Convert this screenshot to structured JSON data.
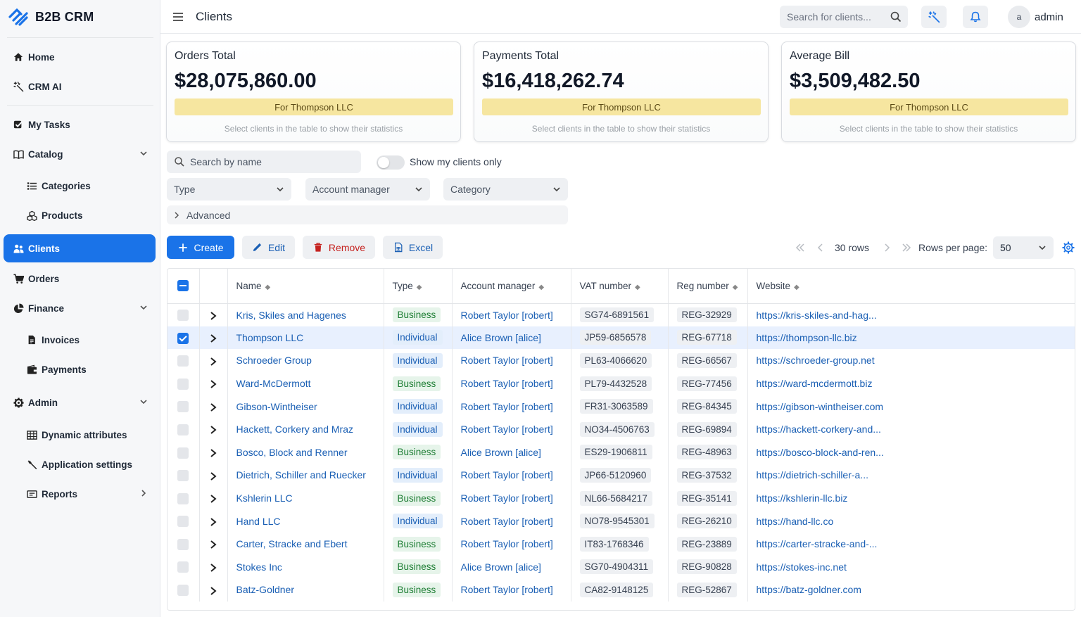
{
  "app": {
    "brand": "B2B CRM",
    "page_title": "Clients",
    "accent_color": "#1a73e8"
  },
  "sidebar": {
    "items": [
      {
        "name": "nav-home",
        "label": "Home",
        "icon": "home-icon"
      },
      {
        "name": "nav-crm-ai",
        "label": "CRM AI",
        "icon": "magic-wand-icon"
      },
      {
        "name": "nav-my-tasks",
        "label": "My Tasks",
        "icon": "checkbox-icon"
      },
      {
        "name": "nav-catalog",
        "label": "Catalog",
        "icon": "book-icon",
        "expandable": true
      },
      {
        "name": "nav-categories",
        "label": "Categories",
        "icon": "list-icon",
        "sub": true
      },
      {
        "name": "nav-products",
        "label": "Products",
        "icon": "cubes-icon",
        "sub": true
      },
      {
        "name": "nav-clients",
        "label": "Clients",
        "icon": "users-icon",
        "active": true
      },
      {
        "name": "nav-orders",
        "label": "Orders",
        "icon": "cart-icon"
      },
      {
        "name": "nav-finance",
        "label": "Finance",
        "icon": "pie-chart-icon",
        "expandable": true
      },
      {
        "name": "nav-invoices",
        "label": "Invoices",
        "icon": "document-icon",
        "sub": true
      },
      {
        "name": "nav-payments",
        "label": "Payments",
        "icon": "wallet-icon",
        "sub": true
      },
      {
        "name": "nav-admin",
        "label": "Admin",
        "icon": "gear-icon",
        "expandable": true
      },
      {
        "name": "nav-dynamic-attributes",
        "label": "Dynamic attributes",
        "icon": "table-icon",
        "sub": true
      },
      {
        "name": "nav-application-settings",
        "label": "Application settings",
        "icon": "wrench-icon",
        "sub": true
      },
      {
        "name": "nav-reports",
        "label": "Reports",
        "icon": "report-icon",
        "sub": true,
        "submenu": true
      }
    ]
  },
  "header": {
    "search_placeholder": "Search for clients...",
    "avatar_letter": "a",
    "username": "admin"
  },
  "stats": [
    {
      "title": "Orders Total",
      "value": "$28,075,860.00",
      "badge": "For Thompson LLC",
      "hint": "Select clients in the table to show their statistics"
    },
    {
      "title": "Payments Total",
      "value": "$16,418,262.74",
      "badge": "For Thompson LLC",
      "hint": "Select clients in the table to show their statistics"
    },
    {
      "title": "Average Bill",
      "value": "$3,509,482.50",
      "badge": "For Thompson LLC",
      "hint": "Select clients in the table to show their statistics"
    }
  ],
  "filters": {
    "name_placeholder": "Search by name",
    "my_clients_label": "Show my clients only",
    "my_clients_on": false,
    "type_label": "Type",
    "manager_label": "Account manager",
    "category_label": "Category",
    "advanced_label": "Advanced"
  },
  "toolbar": {
    "create": "Create",
    "edit": "Edit",
    "remove": "Remove",
    "excel": "Excel",
    "rows_count": "30 rows",
    "rows_per_page_label": "Rows per page:",
    "rows_per_page": "50"
  },
  "table": {
    "columns": [
      "Name",
      "Type",
      "Account manager",
      "VAT number",
      "Reg number",
      "Website"
    ],
    "rows": [
      {
        "name": "Kris, Skiles and Hagenes",
        "type": "Business",
        "manager": "Robert Taylor [robert]",
        "vat": "SG74-6891561",
        "reg": "REG-32929",
        "website": "https://kris-skiles-and-hag...",
        "selected": false
      },
      {
        "name": "Thompson LLC",
        "type": "Individual",
        "manager": "Alice Brown [alice]",
        "vat": "JP59-6856578",
        "reg": "REG-67718",
        "website": "https://thompson-llc.biz",
        "selected": true
      },
      {
        "name": "Schroeder Group",
        "type": "Individual",
        "manager": "Robert Taylor [robert]",
        "vat": "PL63-4066620",
        "reg": "REG-66567",
        "website": "https://schroeder-group.net",
        "selected": false
      },
      {
        "name": "Ward-McDermott",
        "type": "Business",
        "manager": "Robert Taylor [robert]",
        "vat": "PL79-4432528",
        "reg": "REG-77456",
        "website": "https://ward-mcdermott.biz",
        "selected": false
      },
      {
        "name": "Gibson-Wintheiser",
        "type": "Individual",
        "manager": "Robert Taylor [robert]",
        "vat": "FR31-3063589",
        "reg": "REG-84345",
        "website": "https://gibson-wintheiser.com",
        "selected": false
      },
      {
        "name": "Hackett, Corkery and Mraz",
        "type": "Individual",
        "manager": "Robert Taylor [robert]",
        "vat": "NO34-4506763",
        "reg": "REG-69894",
        "website": "https://hackett-corkery-and...",
        "selected": false
      },
      {
        "name": "Bosco, Block and Renner",
        "type": "Business",
        "manager": "Alice Brown [alice]",
        "vat": "ES29-1906811",
        "reg": "REG-48963",
        "website": "https://bosco-block-and-ren...",
        "selected": false
      },
      {
        "name": "Dietrich, Schiller and Ruecker",
        "type": "Individual",
        "manager": "Robert Taylor [robert]",
        "vat": "JP66-5120960",
        "reg": "REG-37532",
        "website": "https://dietrich-schiller-a...",
        "selected": false
      },
      {
        "name": "Kshlerin LLC",
        "type": "Business",
        "manager": "Robert Taylor [robert]",
        "vat": "NL66-5684217",
        "reg": "REG-35141",
        "website": "https://kshlerin-llc.biz",
        "selected": false
      },
      {
        "name": "Hand LLC",
        "type": "Individual",
        "manager": "Robert Taylor [robert]",
        "vat": "NO78-9545301",
        "reg": "REG-26210",
        "website": "https://hand-llc.co",
        "selected": false
      },
      {
        "name": "Carter, Stracke and Ebert",
        "type": "Business",
        "manager": "Robert Taylor [robert]",
        "vat": "IT83-1768346",
        "reg": "REG-23889",
        "website": "https://carter-stracke-and-...",
        "selected": false
      },
      {
        "name": "Stokes Inc",
        "type": "Business",
        "manager": "Alice Brown [alice]",
        "vat": "SG70-4904311",
        "reg": "REG-90828",
        "website": "https://stokes-inc.net",
        "selected": false
      },
      {
        "name": "Batz-Goldner",
        "type": "Business",
        "manager": "Robert Taylor [robert]",
        "vat": "CA82-9148125",
        "reg": "REG-52867",
        "website": "https://batz-goldner.com",
        "selected": false
      }
    ]
  }
}
